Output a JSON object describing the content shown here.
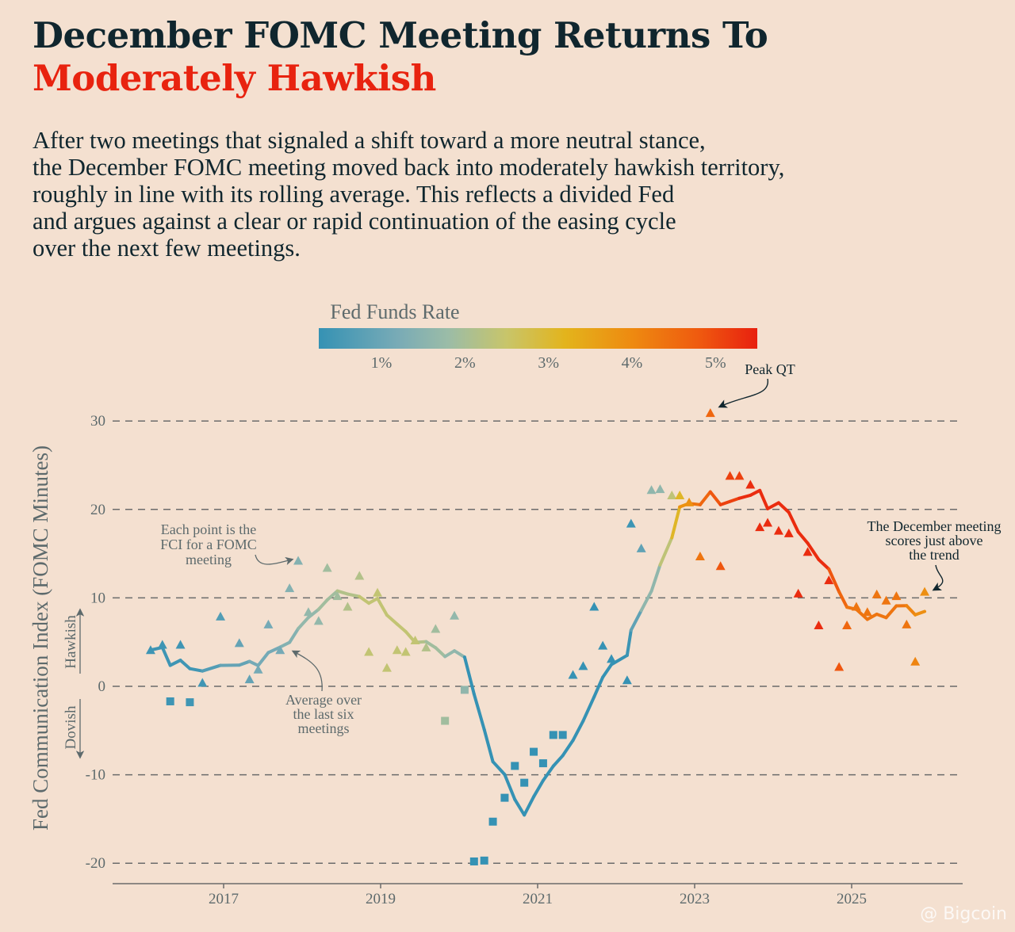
{
  "header": {
    "title_line1": "December FOMC Meeting Returns To",
    "title_line2": "Moderately Hawkish",
    "subtitle_lines": [
      "After two meetings that signaled a shift toward a more neutral stance,",
      "the December FOMC meeting moved back into moderately hawkish territory,",
      "roughly in line with its rolling average. This reflects a divided Fed",
      "and argues against a clear or rapid continuation of the easing cycle",
      "over the next few meetings."
    ]
  },
  "colors": {
    "title": "#10262e",
    "accent": "#e8230f",
    "background": "#f4e0d0",
    "grid": "#6b6b6b"
  },
  "watermark": "@ Bigcoin",
  "chart_data": {
    "type": "scatter",
    "ylabel": "Fed Communication Index (FOMC Minutes)",
    "ylim": [
      -20,
      30
    ],
    "yticks": [
      30,
      20,
      10,
      0,
      -10,
      -20
    ],
    "xlim": [
      2015.4,
      2026.4
    ],
    "xticks": [
      2017,
      2019,
      2021,
      2023,
      2025
    ],
    "grid": "horizontal-dashed",
    "direction_labels": {
      "up": "Hawkish",
      "down": "Dovish"
    },
    "colorbar": {
      "title": "Fed Funds Rate",
      "range": [
        0.25,
        5.5
      ],
      "ticks": [
        "1%",
        "2%",
        "3%",
        "4%",
        "5%"
      ],
      "tick_values": [
        1,
        2,
        3,
        4,
        5
      ],
      "stops": [
        [
          0.25,
          "#3592b4"
        ],
        [
          1.2,
          "#79abb6"
        ],
        [
          1.8,
          "#9bbca7"
        ],
        [
          2.5,
          "#c8c56a"
        ],
        [
          3.2,
          "#e3b41c"
        ],
        [
          4.0,
          "#ee8a10"
        ],
        [
          4.8,
          "#ef5a0f"
        ],
        [
          5.5,
          "#e8200f"
        ]
      ]
    },
    "points_shape_rule": "triangle when >= 0, square when < 0",
    "points": {
      "x": [
        2016.07,
        2016.22,
        2016.32,
        2016.45,
        2016.57,
        2016.73,
        2016.96,
        2017.2,
        2017.33,
        2017.44,
        2017.57,
        2017.72,
        2017.84,
        2017.95,
        2018.08,
        2018.21,
        2018.32,
        2018.45,
        2018.58,
        2018.73,
        2018.85,
        2018.96,
        2019.08,
        2019.21,
        2019.32,
        2019.44,
        2019.58,
        2019.7,
        2019.82,
        2019.94,
        2020.07,
        2020.19,
        2020.32,
        2020.43,
        2020.58,
        2020.71,
        2020.83,
        2020.95,
        2021.07,
        2021.2,
        2021.32,
        2021.45,
        2021.58,
        2021.72,
        2021.83,
        2021.94,
        2022.14,
        2022.19,
        2022.32,
        2022.45,
        2022.56,
        2022.71,
        2022.81,
        2022.93,
        2023.07,
        2023.2,
        2023.33,
        2023.45,
        2023.57,
        2023.71,
        2023.83,
        2023.93,
        2024.07,
        2024.2,
        2024.32,
        2024.44,
        2024.58,
        2024.71,
        2024.84,
        2024.94,
        2025.06,
        2025.2,
        2025.32,
        2025.44,
        2025.57,
        2025.7,
        2025.81,
        2025.93
      ],
      "y": [
        4.1,
        4.7,
        -1.7,
        4.7,
        -1.8,
        0.4,
        7.9,
        4.9,
        0.8,
        1.9,
        7.0,
        4.1,
        11.1,
        14.2,
        8.4,
        7.4,
        13.4,
        10.2,
        9.0,
        12.5,
        3.9,
        10.6,
        2.1,
        4.1,
        3.9,
        5.2,
        4.4,
        6.5,
        -3.9,
        8.0,
        -0.4,
        -19.8,
        -19.7,
        -15.3,
        -12.6,
        -9.0,
        -10.9,
        -7.4,
        -8.7,
        -5.5,
        -5.5,
        1.3,
        2.3,
        9.0,
        4.6,
        3.1,
        0.7,
        18.4,
        15.6,
        22.2,
        22.3,
        21.6,
        21.6,
        20.8,
        14.7,
        30.9,
        13.6,
        23.8,
        23.8,
        22.8,
        18.0,
        18.5,
        17.6,
        17.3,
        10.5,
        15.2,
        6.9,
        12.0,
        2.2,
        6.9,
        9.0,
        8.4,
        10.4,
        9.7,
        10.2,
        7.0,
        2.8,
        10.7
      ],
      "rate": [
        0.37,
        0.37,
        0.37,
        0.37,
        0.4,
        0.4,
        0.65,
        0.9,
        0.9,
        1.15,
        1.15,
        1.15,
        1.4,
        1.4,
        1.65,
        1.65,
        1.9,
        1.9,
        2.15,
        2.15,
        2.4,
        2.4,
        2.4,
        2.4,
        2.4,
        2.4,
        2.15,
        1.9,
        1.9,
        1.65,
        1.6,
        0.1,
        0.1,
        0.1,
        0.1,
        0.1,
        0.1,
        0.1,
        0.1,
        0.1,
        0.1,
        0.1,
        0.1,
        0.1,
        0.1,
        0.1,
        0.1,
        0.35,
        0.85,
        1.6,
        1.6,
        2.35,
        3.1,
        3.85,
        4.35,
        4.6,
        4.85,
        5.1,
        5.1,
        5.35,
        5.35,
        5.35,
        5.35,
        5.35,
        5.35,
        5.35,
        5.35,
        5.35,
        4.85,
        4.6,
        4.35,
        4.35,
        4.35,
        4.35,
        4.35,
        4.35,
        4.1,
        3.9
      ]
    },
    "rolling_average": {
      "name": "Average over the last six meetings",
      "window": 6
    },
    "annotations": {
      "peak": "Peak QT",
      "points_note": [
        "Each point is the",
        "FCI for a FOMC",
        "meeting"
      ],
      "average_note": [
        "Average over",
        "the last six",
        "meetings"
      ],
      "december_note": [
        "The December meeting",
        "scores just above",
        "the trend"
      ]
    }
  }
}
